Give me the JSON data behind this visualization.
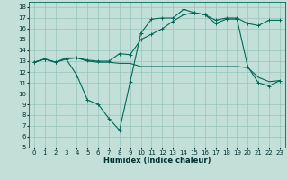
{
  "title": "",
  "xlabel": "Humidex (Indice chaleur)",
  "bg_color": "#c2e0d8",
  "grid_color": "#98c4bc",
  "line_color": "#006858",
  "xlim": [
    -0.5,
    23.5
  ],
  "ylim": [
    5,
    18.5
  ],
  "xticks": [
    0,
    1,
    2,
    3,
    4,
    5,
    6,
    7,
    8,
    9,
    10,
    11,
    12,
    13,
    14,
    15,
    16,
    17,
    18,
    19,
    20,
    21,
    22,
    23
  ],
  "yticks": [
    5,
    6,
    7,
    8,
    9,
    10,
    11,
    12,
    13,
    14,
    15,
    16,
    17,
    18
  ],
  "series1_x": [
    0,
    1,
    2,
    3,
    4,
    5,
    6,
    7,
    8,
    9,
    10,
    11,
    12,
    13,
    14,
    15,
    16,
    17,
    18,
    19,
    20,
    21,
    22,
    23
  ],
  "series1_y": [
    12.9,
    13.2,
    12.9,
    13.2,
    13.3,
    13.0,
    12.9,
    12.9,
    12.8,
    12.8,
    12.5,
    12.5,
    12.5,
    12.5,
    12.5,
    12.5,
    12.5,
    12.5,
    12.5,
    12.5,
    12.4,
    11.5,
    11.1,
    11.2
  ],
  "series2_x": [
    0,
    1,
    2,
    3,
    4,
    5,
    6,
    7,
    8,
    9,
    10,
    11,
    12,
    13,
    14,
    15,
    16,
    17,
    18,
    19,
    20,
    21,
    22,
    23
  ],
  "series2_y": [
    12.9,
    13.2,
    12.9,
    13.2,
    11.7,
    9.4,
    9.0,
    7.7,
    6.6,
    11.1,
    15.6,
    16.9,
    17.0,
    17.0,
    17.8,
    17.5,
    17.3,
    16.5,
    16.9,
    16.9,
    12.5,
    11.0,
    10.7,
    11.2
  ],
  "series3_x": [
    0,
    1,
    2,
    3,
    4,
    5,
    6,
    7,
    8,
    9,
    10,
    11,
    12,
    13,
    14,
    15,
    16,
    17,
    18,
    19,
    20,
    21,
    22,
    23
  ],
  "series3_y": [
    12.9,
    13.2,
    12.9,
    13.3,
    13.3,
    13.1,
    13.0,
    13.0,
    13.7,
    13.6,
    15.0,
    15.5,
    16.0,
    16.7,
    17.3,
    17.5,
    17.3,
    16.8,
    17.0,
    17.0,
    16.5,
    16.3,
    16.8,
    16.8
  ],
  "tick_fontsize": 5.0,
  "xlabel_fontsize": 6.0
}
